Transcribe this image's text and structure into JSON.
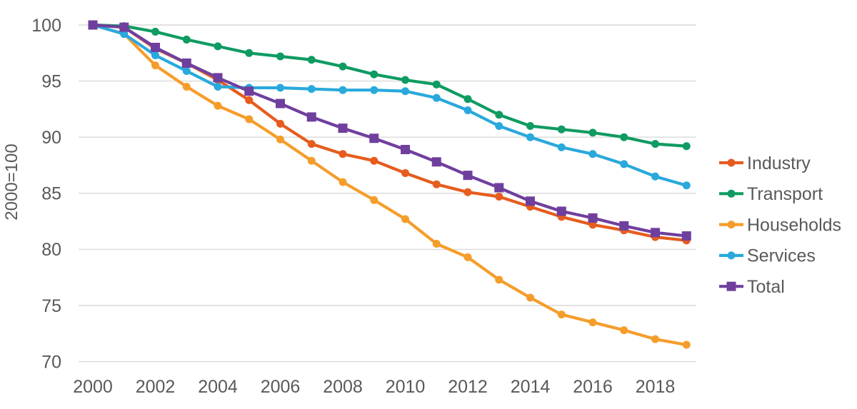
{
  "chart_data": {
    "type": "line",
    "title": "",
    "xlabel": "",
    "ylabel": "2000=100",
    "ylim": [
      70,
      100
    ],
    "grid": "horizontal-only",
    "legend_position": "right",
    "x": [
      2000,
      2001,
      2002,
      2003,
      2004,
      2005,
      2006,
      2007,
      2008,
      2009,
      2010,
      2011,
      2012,
      2013,
      2014,
      2015,
      2016,
      2017,
      2018,
      2019
    ],
    "x_ticks": [
      "2000",
      "2002",
      "2004",
      "2006",
      "2008",
      "2010",
      "2012",
      "2014",
      "2016",
      "2018"
    ],
    "y_ticks": [
      "100",
      "95",
      "90",
      "85",
      "80",
      "75",
      "70"
    ],
    "series": [
      {
        "name": "Industry",
        "color": "#e65c1e",
        "marker": "circle",
        "values": [
          100,
          99.8,
          97.9,
          96.6,
          95.1,
          93.3,
          91.2,
          89.4,
          88.5,
          87.9,
          86.8,
          85.8,
          85.1,
          84.7,
          83.8,
          82.9,
          82.2,
          81.7,
          81.1,
          80.8
        ]
      },
      {
        "name": "Transport",
        "color": "#0f9b61",
        "marker": "circle",
        "values": [
          100,
          99.9,
          99.4,
          98.7,
          98.1,
          97.5,
          97.2,
          96.9,
          96.3,
          95.6,
          95.1,
          94.7,
          93.4,
          92.0,
          91.0,
          90.7,
          90.4,
          90.0,
          89.4,
          89.2
        ]
      },
      {
        "name": "Households",
        "color": "#f59d2b",
        "marker": "circle",
        "values": [
          100,
          99.2,
          96.4,
          94.5,
          92.8,
          91.6,
          89.8,
          87.9,
          86.0,
          84.4,
          82.7,
          80.5,
          79.3,
          77.3,
          75.7,
          74.2,
          73.5,
          72.8,
          72.0,
          71.5
        ]
      },
      {
        "name": "Services",
        "color": "#29a9dc",
        "marker": "circle",
        "values": [
          100,
          99.2,
          97.3,
          95.9,
          94.5,
          94.4,
          94.4,
          94.3,
          94.2,
          94.2,
          94.1,
          93.5,
          92.4,
          91.0,
          90.0,
          89.1,
          88.5,
          87.6,
          86.5,
          85.7
        ]
      },
      {
        "name": "Total",
        "color": "#6f3f9e",
        "marker": "square",
        "values": [
          100,
          99.8,
          98.0,
          96.6,
          95.3,
          94.1,
          93.0,
          91.8,
          90.8,
          89.9,
          88.9,
          87.8,
          86.6,
          85.5,
          84.3,
          83.4,
          82.8,
          82.1,
          81.5,
          81.2
        ]
      }
    ]
  },
  "colors": {
    "text": "#595959",
    "grid": "#d9d9d9",
    "background": "#ffffff"
  }
}
